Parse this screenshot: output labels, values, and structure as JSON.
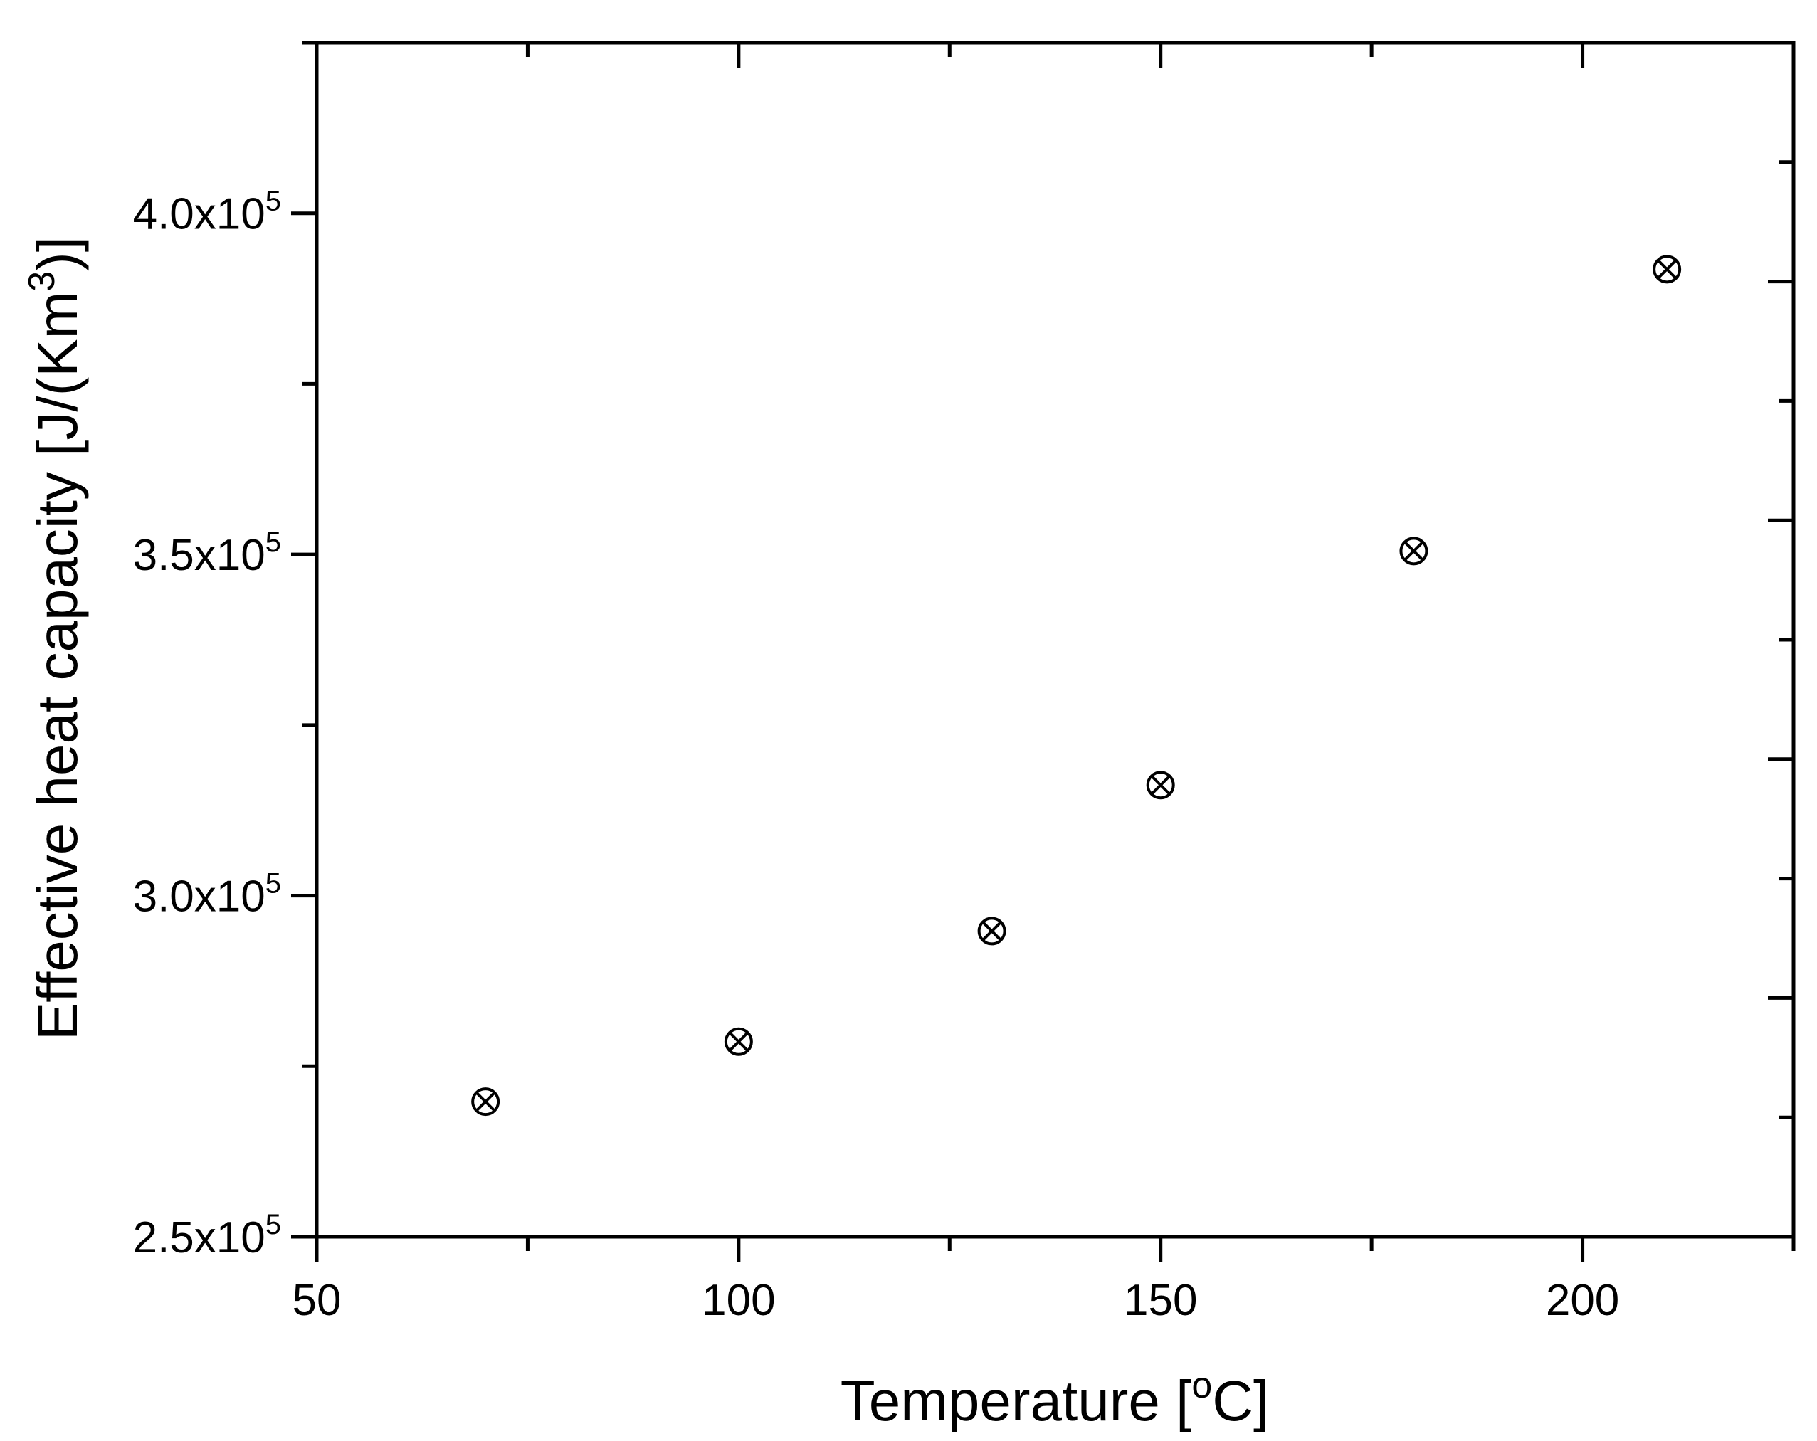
{
  "chart_data": {
    "type": "scatter",
    "title": "",
    "xlabel": {
      "text": "Temperature [",
      "sup": "o",
      "suffix": "C]"
    },
    "ylabel": {
      "text": "Effective heat capacity [J/(Km",
      "sup": "3",
      "suffix": ")]"
    },
    "xlim": [
      50,
      225
    ],
    "ylim": [
      250000,
      425000
    ],
    "x_ticks": [
      {
        "value": 50,
        "label": "50"
      },
      {
        "value": 100,
        "label": "100"
      },
      {
        "value": 150,
        "label": "150"
      },
      {
        "value": 200,
        "label": "200"
      }
    ],
    "x_minor_ticks": [
      75,
      125,
      175,
      225
    ],
    "y_ticks": [
      {
        "value": 250000,
        "base": "2.5x10",
        "exp": "5"
      },
      {
        "value": 300000,
        "base": "3.0x10",
        "exp": "5"
      },
      {
        "value": 350000,
        "base": "3.5x10",
        "exp": "5"
      },
      {
        "value": 400000,
        "base": "4.0x10",
        "exp": "5"
      }
    ],
    "y_minor_ticks": [
      275000,
      325000,
      375000,
      425000
    ],
    "right_axis_ticks": [
      267500,
      285000,
      302500,
      320000,
      337500,
      355000,
      372500,
      390000,
      407500
    ],
    "grid": false,
    "marker": "circle-x",
    "color": "#000000",
    "series": [
      {
        "x": [
          70,
          100,
          130,
          150,
          180,
          210
        ],
        "y": [
          269800,
          278600,
          294800,
          316200,
          350500,
          391800
        ]
      }
    ]
  }
}
